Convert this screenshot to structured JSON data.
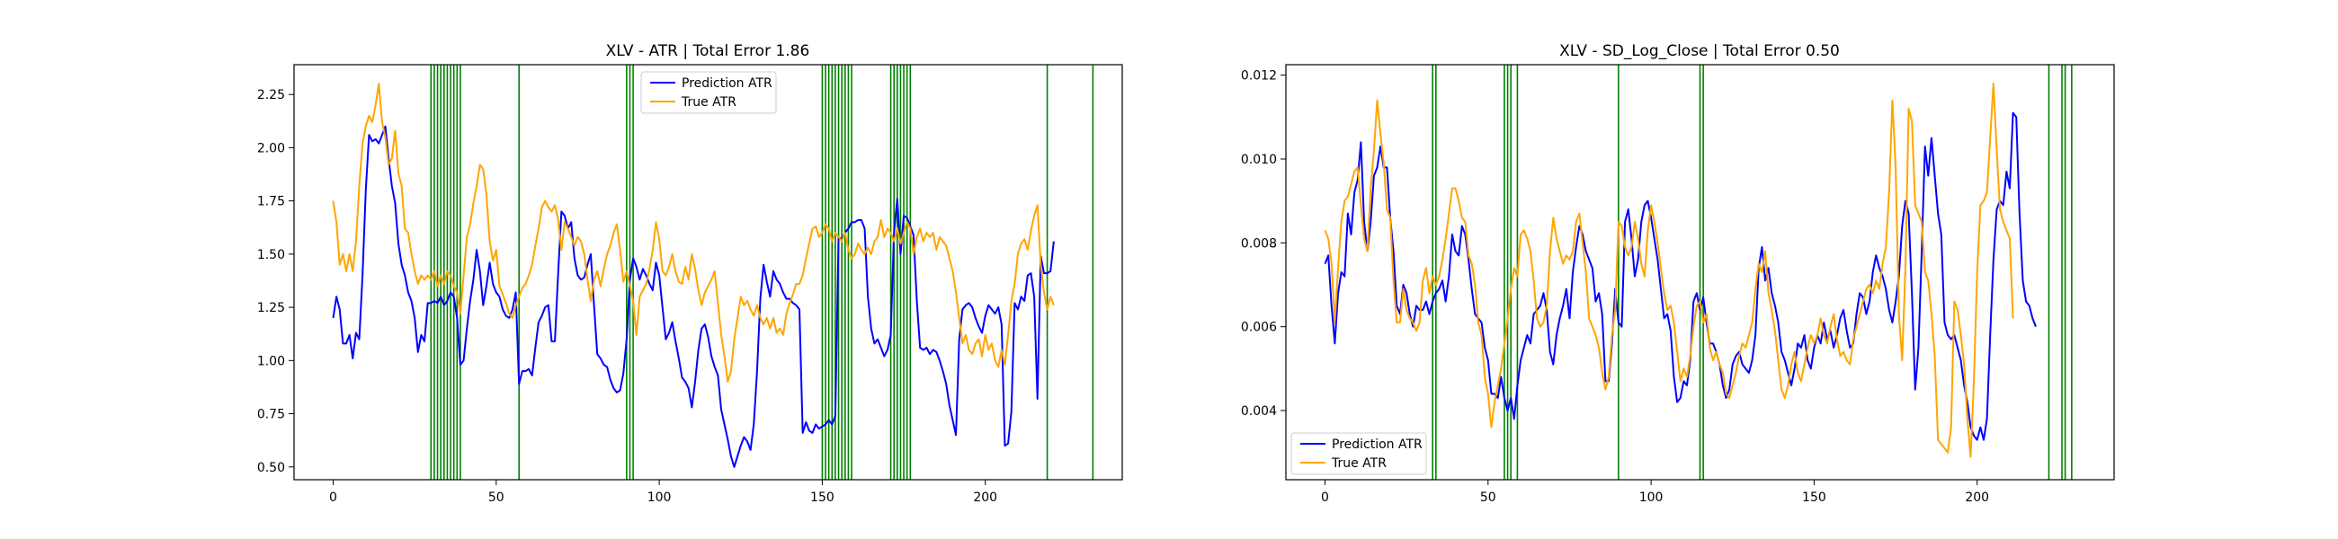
{
  "figure": {
    "background": "#ffffff"
  },
  "chart_data": [
    {
      "type": "line",
      "title": "XLV - ATR | Total Error 1.86",
      "xlabel": "",
      "ylabel": "",
      "xlim": [
        -12,
        242
      ],
      "ylim": [
        0.44,
        2.39
      ],
      "xticks": [
        0,
        50,
        100,
        150,
        200
      ],
      "yticks": [
        0.5,
        0.75,
        1.0,
        1.25,
        1.5,
        1.75,
        2.0,
        2.25
      ],
      "ytick_labels": [
        "0.50",
        "0.75",
        "1.00",
        "1.25",
        "1.50",
        "1.75",
        "2.00",
        "2.25"
      ],
      "grid": false,
      "legend_position": "upper-center",
      "vlines": {
        "color": "#008000",
        "x": [
          30,
          31,
          32,
          33,
          34,
          35,
          36,
          37,
          38,
          39,
          57,
          90,
          91,
          92,
          150,
          151,
          152,
          153,
          154,
          155,
          156,
          157,
          158,
          159,
          171,
          172,
          173,
          174,
          175,
          176,
          177,
          219,
          233
        ]
      },
      "series": [
        {
          "name": "Prediction ATR",
          "color": "#0000ff",
          "x_start": 0,
          "values": [
            1.2,
            1.3,
            1.24,
            1.08,
            1.08,
            1.12,
            1.01,
            1.13,
            1.1,
            1.4,
            1.8,
            2.06,
            2.03,
            2.04,
            2.02,
            2.06,
            2.1,
            1.95,
            1.82,
            1.74,
            1.55,
            1.45,
            1.4,
            1.32,
            1.28,
            1.2,
            1.04,
            1.12,
            1.09,
            1.27,
            1.27,
            1.28,
            1.27,
            1.3,
            1.26,
            1.28,
            1.32,
            1.3,
            1.2,
            0.98,
            1.0,
            1.15,
            1.28,
            1.38,
            1.52,
            1.42,
            1.26,
            1.35,
            1.46,
            1.36,
            1.32,
            1.3,
            1.24,
            1.21,
            1.2,
            1.24,
            1.32,
            0.89,
            0.95,
            0.95,
            0.96,
            0.93,
            1.06,
            1.18,
            1.21,
            1.25,
            1.26,
            1.09,
            1.09,
            1.41,
            1.7,
            1.68,
            1.62,
            1.65,
            1.48,
            1.4,
            1.38,
            1.39,
            1.45,
            1.5,
            1.26,
            1.03,
            1.01,
            0.98,
            0.97,
            0.91,
            0.87,
            0.85,
            0.86,
            0.94,
            1.1,
            1.38,
            1.48,
            1.44,
            1.38,
            1.43,
            1.4,
            1.36,
            1.33,
            1.46,
            1.4,
            1.25,
            1.1,
            1.13,
            1.18,
            1.09,
            1.01,
            0.92,
            0.9,
            0.87,
            0.78,
            0.9,
            1.05,
            1.15,
            1.17,
            1.11,
            1.02,
            0.97,
            0.93,
            0.77,
            0.7,
            0.63,
            0.55,
            0.5,
            0.55,
            0.6,
            0.64,
            0.62,
            0.58,
            0.7,
            0.95,
            1.29,
            1.45,
            1.37,
            1.3,
            1.42,
            1.38,
            1.36,
            1.32,
            1.29,
            1.29,
            1.27,
            1.26,
            1.24,
            0.66,
            0.71,
            0.67,
            0.66,
            0.7,
            0.68,
            0.69,
            0.7,
            0.72,
            0.7,
            0.74,
            1.58,
            1.57,
            1.6,
            1.62,
            1.65,
            1.65,
            1.66,
            1.66,
            1.62,
            1.3,
            1.15,
            1.08,
            1.1,
            1.06,
            1.02,
            1.05,
            1.12,
            1.6,
            1.76,
            1.5,
            1.68,
            1.67,
            1.63,
            1.59,
            1.28,
            1.06,
            1.05,
            1.06,
            1.03,
            1.05,
            1.04,
            1.0,
            0.95,
            0.89,
            0.79,
            0.72,
            0.65,
            1.1,
            1.24,
            1.26,
            1.27,
            1.25,
            1.2,
            1.16,
            1.13,
            1.21,
            1.26,
            1.24,
            1.22,
            1.25,
            1.17,
            0.6,
            0.61,
            0.76,
            1.27,
            1.24,
            1.3,
            1.28,
            1.4,
            1.41,
            1.3,
            0.82,
            1.49,
            1.41,
            1.41,
            1.42,
            1.56
          ]
        },
        {
          "name": "True ATR",
          "color": "#ffa500",
          "x_start": 0,
          "values": [
            1.75,
            1.65,
            1.45,
            1.5,
            1.42,
            1.5,
            1.42,
            1.56,
            1.82,
            2.02,
            2.1,
            2.15,
            2.12,
            2.2,
            2.3,
            2.12,
            2.05,
            1.92,
            1.95,
            2.08,
            1.88,
            1.82,
            1.62,
            1.6,
            1.5,
            1.42,
            1.36,
            1.4,
            1.38,
            1.4,
            1.38,
            1.42,
            1.35,
            1.4,
            1.36,
            1.42,
            1.4,
            1.35,
            1.32,
            1.22,
            1.4,
            1.58,
            1.64,
            1.74,
            1.82,
            1.92,
            1.9,
            1.78,
            1.56,
            1.47,
            1.52,
            1.35,
            1.31,
            1.27,
            1.22,
            1.2,
            1.26,
            1.3,
            1.34,
            1.36,
            1.4,
            1.45,
            1.54,
            1.62,
            1.72,
            1.75,
            1.72,
            1.7,
            1.73,
            1.66,
            1.52,
            1.65,
            1.62,
            1.58,
            1.54,
            1.58,
            1.56,
            1.5,
            1.38,
            1.28,
            1.38,
            1.42,
            1.35,
            1.43,
            1.5,
            1.54,
            1.6,
            1.64,
            1.52,
            1.37,
            1.42,
            1.35,
            1.28,
            1.12,
            1.3,
            1.33,
            1.36,
            1.43,
            1.52,
            1.65,
            1.57,
            1.42,
            1.4,
            1.44,
            1.5,
            1.42,
            1.37,
            1.36,
            1.44,
            1.38,
            1.5,
            1.43,
            1.33,
            1.26,
            1.32,
            1.35,
            1.38,
            1.42,
            1.27,
            1.12,
            1.02,
            0.9,
            0.95,
            1.1,
            1.2,
            1.3,
            1.26,
            1.28,
            1.24,
            1.21,
            1.26,
            1.2,
            1.17,
            1.2,
            1.15,
            1.2,
            1.13,
            1.15,
            1.12,
            1.22,
            1.27,
            1.31,
            1.36,
            1.36,
            1.4,
            1.48,
            1.55,
            1.62,
            1.63,
            1.58,
            1.6,
            1.64,
            1.62,
            1.56,
            1.6,
            1.58,
            1.56,
            1.6,
            1.52,
            1.48,
            1.5,
            1.55,
            1.52,
            1.5,
            1.53,
            1.5,
            1.56,
            1.58,
            1.66,
            1.58,
            1.62,
            1.6,
            1.56,
            1.62,
            1.55,
            1.6,
            1.65,
            1.62,
            1.5,
            1.58,
            1.62,
            1.56,
            1.6,
            1.58,
            1.6,
            1.52,
            1.58,
            1.56,
            1.54,
            1.48,
            1.42,
            1.32,
            1.2,
            1.08,
            1.12,
            1.05,
            1.03,
            1.08,
            1.1,
            1.02,
            1.12,
            1.05,
            1.08,
            1.0,
            0.97,
            1.05,
            0.98,
            1.12,
            1.28,
            1.36,
            1.5,
            1.55,
            1.57,
            1.52,
            1.61,
            1.68,
            1.73,
            1.45,
            1.32,
            1.24,
            1.3,
            1.26
          ]
        }
      ]
    },
    {
      "type": "line",
      "title": "XLV - SD_Log_Close | Total Error 0.50",
      "xlabel": "",
      "ylabel": "",
      "xlim": [
        -12,
        242
      ],
      "ylim": [
        0.00235,
        0.01225
      ],
      "xticks": [
        0,
        50,
        100,
        150,
        200
      ],
      "yticks": [
        0.004,
        0.006,
        0.008,
        0.01,
        0.012
      ],
      "ytick_labels": [
        "0.004",
        "0.006",
        "0.008",
        "0.010",
        "0.012"
      ],
      "grid": false,
      "legend_position": "lower-left",
      "vlines": {
        "color": "#008000",
        "x": [
          33,
          34,
          55,
          56,
          57,
          59,
          90,
          115,
          116,
          222,
          226,
          227,
          229
        ]
      },
      "series": [
        {
          "name": "Prediction ATR",
          "color": "#0000ff",
          "x_start": 0,
          "values": [
            0.0075,
            0.0077,
            0.0065,
            0.0056,
            0.0068,
            0.0073,
            0.0072,
            0.0087,
            0.0082,
            0.0092,
            0.0095,
            0.0104,
            0.0085,
            0.0078,
            0.0085,
            0.0096,
            0.0098,
            0.0103,
            0.0098,
            0.0098,
            0.0086,
            0.0078,
            0.0065,
            0.0063,
            0.007,
            0.0068,
            0.0063,
            0.006,
            0.0065,
            0.0064,
            0.0064,
            0.0066,
            0.0063,
            0.0066,
            0.0068,
            0.0069,
            0.0071,
            0.0066,
            0.0072,
            0.0082,
            0.0078,
            0.0077,
            0.0084,
            0.0082,
            0.0076,
            0.0069,
            0.0063,
            0.0062,
            0.0061,
            0.0055,
            0.0052,
            0.0044,
            0.0044,
            0.0043,
            0.0048,
            0.0043,
            0.004,
            0.0043,
            0.0038,
            0.0046,
            0.0052,
            0.0055,
            0.0058,
            0.0056,
            0.0063,
            0.0064,
            0.0065,
            0.0068,
            0.0064,
            0.0054,
            0.0051,
            0.0058,
            0.0062,
            0.0065,
            0.0069,
            0.0062,
            0.0073,
            0.0079,
            0.0084,
            0.0082,
            0.0078,
            0.0076,
            0.0074,
            0.0066,
            0.0068,
            0.0063,
            0.0047,
            0.0047,
            0.0056,
            0.0069,
            0.0061,
            0.006,
            0.0085,
            0.0088,
            0.0081,
            0.0072,
            0.0076,
            0.0085,
            0.0089,
            0.009,
            0.0086,
            0.0081,
            0.0076,
            0.0069,
            0.0062,
            0.0063,
            0.0059,
            0.0048,
            0.0042,
            0.0043,
            0.0047,
            0.0046,
            0.0052,
            0.0066,
            0.0068,
            0.0064,
            0.0067,
            0.0061,
            0.0056,
            0.0056,
            0.0054,
            0.0051,
            0.0046,
            0.0043,
            0.0045,
            0.0051,
            0.0053,
            0.0054,
            0.0051,
            0.005,
            0.0049,
            0.0052,
            0.0058,
            0.0074,
            0.0079,
            0.0071,
            0.0074,
            0.0068,
            0.0065,
            0.0061,
            0.0054,
            0.0052,
            0.0049,
            0.0046,
            0.005,
            0.0056,
            0.0055,
            0.0058,
            0.0052,
            0.005,
            0.0055,
            0.0058,
            0.0056,
            0.0061,
            0.0057,
            0.0059,
            0.0055,
            0.0058,
            0.0062,
            0.0064,
            0.0059,
            0.0055,
            0.0056,
            0.0063,
            0.0068,
            0.0067,
            0.0063,
            0.0066,
            0.0073,
            0.0077,
            0.0074,
            0.0072,
            0.0069,
            0.0064,
            0.0061,
            0.0066,
            0.0072,
            0.0084,
            0.009,
            0.0087,
            0.0068,
            0.0045,
            0.0055,
            0.0078,
            0.0103,
            0.0096,
            0.0105,
            0.0096,
            0.0087,
            0.0082,
            0.0061,
            0.0058,
            0.0057,
            0.0058,
            0.0055,
            0.0052,
            0.0046,
            0.0042,
            0.0036,
            0.0034,
            0.0033,
            0.0036,
            0.0033,
            0.0038,
            0.0058,
            0.0076,
            0.0088,
            0.009,
            0.0089,
            0.0097,
            0.0093,
            0.0111,
            0.011,
            0.0087,
            0.0071,
            0.0066,
            0.0065,
            0.0062,
            0.006
          ]
        },
        {
          "name": "True ATR",
          "color": "#ffa500",
          "x_start": 0,
          "values": [
            0.0083,
            0.0081,
            0.0075,
            0.0061,
            0.0074,
            0.0085,
            0.009,
            0.0091,
            0.0094,
            0.0097,
            0.0098,
            0.0089,
            0.0081,
            0.0078,
            0.0093,
            0.0102,
            0.0114,
            0.0106,
            0.0099,
            0.0088,
            0.0086,
            0.0071,
            0.0061,
            0.0061,
            0.0069,
            0.0064,
            0.0062,
            0.0061,
            0.0059,
            0.0061,
            0.0071,
            0.0074,
            0.0068,
            0.0072,
            0.007,
            0.0072,
            0.0076,
            0.0081,
            0.0087,
            0.0093,
            0.0093,
            0.009,
            0.0086,
            0.0085,
            0.0077,
            0.0075,
            0.007,
            0.0061,
            0.0058,
            0.0048,
            0.0044,
            0.0036,
            0.0042,
            0.0046,
            0.005,
            0.0056,
            0.0062,
            0.0069,
            0.0074,
            0.0072,
            0.0082,
            0.0083,
            0.0081,
            0.0078,
            0.0071,
            0.0062,
            0.006,
            0.0061,
            0.0065,
            0.0078,
            0.0086,
            0.0081,
            0.0078,
            0.0075,
            0.0077,
            0.0076,
            0.0078,
            0.0085,
            0.0087,
            0.008,
            0.0073,
            0.0062,
            0.006,
            0.0058,
            0.0055,
            0.0049,
            0.0045,
            0.0048,
            0.0058,
            0.0064,
            0.0085,
            0.0084,
            0.0079,
            0.0077,
            0.0079,
            0.0085,
            0.0081,
            0.0075,
            0.0072,
            0.0083,
            0.0089,
            0.0085,
            0.008,
            0.0074,
            0.0068,
            0.0064,
            0.0065,
            0.0061,
            0.0054,
            0.0047,
            0.005,
            0.0048,
            0.0053,
            0.006,
            0.0065,
            0.0066,
            0.0061,
            0.0063,
            0.0055,
            0.0052,
            0.0054,
            0.0051,
            0.0049,
            0.0044,
            0.0043,
            0.0046,
            0.0049,
            0.0053,
            0.0056,
            0.0055,
            0.0058,
            0.0061,
            0.0069,
            0.0075,
            0.0073,
            0.0078,
            0.0068,
            0.0064,
            0.0059,
            0.0052,
            0.0045,
            0.0043,
            0.0046,
            0.0051,
            0.0054,
            0.0049,
            0.0047,
            0.0051,
            0.0055,
            0.0058,
            0.0056,
            0.0058,
            0.0062,
            0.0058,
            0.0056,
            0.006,
            0.0063,
            0.0057,
            0.0053,
            0.0054,
            0.0052,
            0.0051,
            0.0057,
            0.006,
            0.0063,
            0.0066,
            0.0069,
            0.007,
            0.0068,
            0.0071,
            0.0069,
            0.0075,
            0.0079,
            0.0092,
            0.0114,
            0.0098,
            0.0063,
            0.0052,
            0.0074,
            0.0112,
            0.0109,
            0.0089,
            0.0087,
            0.0085,
            0.0073,
            0.0071,
            0.0063,
            0.0053,
            0.0033,
            0.0032,
            0.0031,
            0.003,
            0.0036,
            0.0066,
            0.0064,
            0.0058,
            0.0051,
            0.0038,
            0.0029,
            0.0047,
            0.0073,
            0.0089,
            0.009,
            0.0092,
            0.0105,
            0.0118,
            0.0102,
            0.0088,
            0.0085,
            0.0083,
            0.0081,
            0.0062
          ]
        }
      ]
    }
  ]
}
